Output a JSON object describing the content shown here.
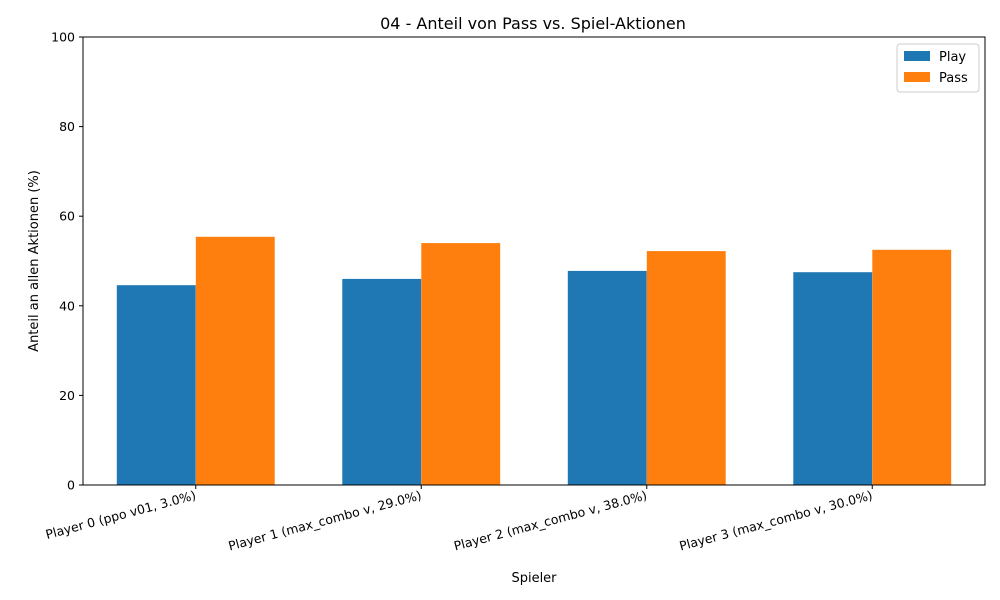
{
  "chart_data": {
    "type": "bar",
    "title": "04 - Anteil von Pass vs. Spiel-Aktionen",
    "xlabel": "Spieler",
    "ylabel": "Anteil an allen Aktionen (%)",
    "ylim": [
      0,
      100
    ],
    "yticks": [
      "0",
      "20",
      "40",
      "60",
      "80",
      "100"
    ],
    "categories": [
      "Player 0 (ppo v01, 3.0%)",
      "Player 1 (max_combo v, 29.0%)",
      "Player 2 (max_combo v, 38.0%)",
      "Player 3 (max_combo v, 30.0%)"
    ],
    "series": [
      {
        "name": "Play",
        "color": "#1f77b4",
        "values": [
          44.6,
          46.0,
          47.8,
          47.5
        ]
      },
      {
        "name": "Pass",
        "color": "#ff7f0e",
        "values": [
          55.4,
          54.0,
          52.2,
          52.5
        ]
      }
    ],
    "grid": false,
    "legend_position": "top-right"
  }
}
